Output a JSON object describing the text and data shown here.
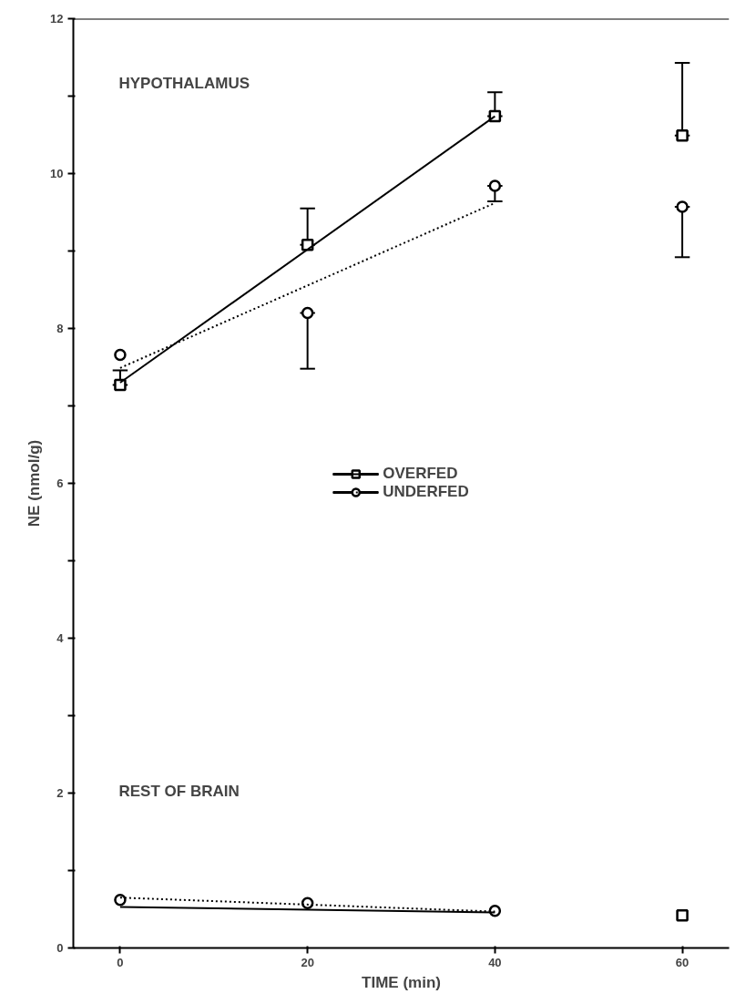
{
  "chart_data": {
    "type": "scatter",
    "xlabel": "TIME (min)",
    "ylabel": "NE (nmol/g)",
    "xlim": [
      -5,
      65
    ],
    "xticks": [
      0,
      20,
      40,
      60
    ],
    "ylim": [
      0,
      12
    ],
    "yticks": [
      0,
      {
        "value": 1,
        "label": null
      },
      2,
      {
        "value": 3,
        "label": null
      },
      4,
      {
        "value": 5,
        "label": null
      },
      6,
      {
        "value": 7,
        "label": null
      },
      8,
      {
        "value": 9,
        "label": null
      },
      10,
      {
        "value": 11,
        "label": null
      },
      12
    ],
    "grid": false,
    "legend": "center",
    "annotations": [
      "HYPOTHALAMUS",
      "REST OF BRAIN"
    ],
    "series": [
      {
        "name": "OVERFED",
        "marker": "square",
        "color": "#000000",
        "x": [
          0,
          20,
          40,
          60
        ],
        "values": [
          7.27,
          9.08,
          10.74,
          10.49
        ],
        "errors": [
          [
            7.27,
            7.46
          ],
          [
            9.08,
            9.55
          ],
          [
            10.74,
            11.05
          ],
          [
            10.49,
            11.43
          ]
        ]
      },
      {
        "type": "line",
        "marker": "none",
        "line_style": "solid",
        "color": "#000000",
        "x": [
          0,
          40
        ],
        "values": [
          7.3,
          10.74
        ]
      },
      {
        "name": "UNDERFED",
        "marker": "circle",
        "color": "#000000",
        "x": [
          0,
          20,
          40,
          60
        ],
        "values": [
          7.66,
          8.2,
          9.84,
          9.57
        ],
        "errors": [
          null,
          [
            7.48,
            8.2
          ],
          [
            9.64,
            9.84
          ],
          [
            8.92,
            9.57
          ]
        ]
      },
      {
        "type": "line",
        "marker": "none",
        "line_style": "dotted",
        "color": "#000000",
        "x": [
          0,
          40
        ],
        "values": [
          7.49,
          9.62
        ]
      },
      {
        "marker": "square",
        "color": "#000000",
        "x": [
          60
        ],
        "values": [
          0.42
        ]
      },
      {
        "marker": "circle",
        "color": "#000000",
        "x": [
          0,
          20,
          40
        ],
        "values": [
          0.62,
          0.58,
          0.48
        ]
      },
      {
        "type": "line",
        "marker": "none",
        "line_style": "solid",
        "color": "#000000",
        "x": [
          0,
          40
        ],
        "values": [
          0.53,
          0.46
        ]
      },
      {
        "type": "line",
        "marker": "none",
        "line_style": "dotted",
        "color": "#000000",
        "x": [
          0,
          40
        ],
        "values": [
          0.65,
          0.47
        ]
      }
    ]
  }
}
